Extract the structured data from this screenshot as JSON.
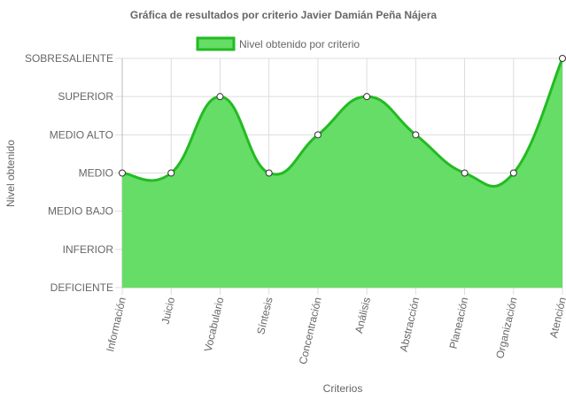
{
  "chart_data": {
    "type": "area",
    "title": "Gráfica de resultados por criterio Javier Damián Peña Nájera",
    "xlabel": "Criterios",
    "ylabel": "Nivel obtenido",
    "y_levels": [
      "DEFICIENTE",
      "INFERIOR",
      "MEDIO BAJO",
      "MEDIO",
      "MEDIO ALTO",
      "SUPERIOR",
      "SOBRESALIENTE"
    ],
    "ylim": [
      0,
      6
    ],
    "grid": true,
    "legend_position": "top",
    "categories": [
      "Información",
      "Juicio",
      "Vocabulario",
      "Síntesis",
      "Concentración",
      "Análisis",
      "Abstracción",
      "Planeación",
      "Organización",
      "Atención"
    ],
    "series": [
      {
        "name": "Nivel obtenido por criterio",
        "values": [
          3,
          3,
          5,
          3,
          4,
          5,
          4,
          3,
          3,
          6
        ],
        "value_labels": [
          "MEDIO",
          "MEDIO",
          "SUPERIOR",
          "MEDIO",
          "MEDIO ALTO",
          "SUPERIOR",
          "MEDIO ALTO",
          "MEDIO",
          "MEDIO",
          "SOBRESALIENTE"
        ],
        "fill_color": "#66dd66",
        "line_color": "#22bb22"
      }
    ]
  }
}
